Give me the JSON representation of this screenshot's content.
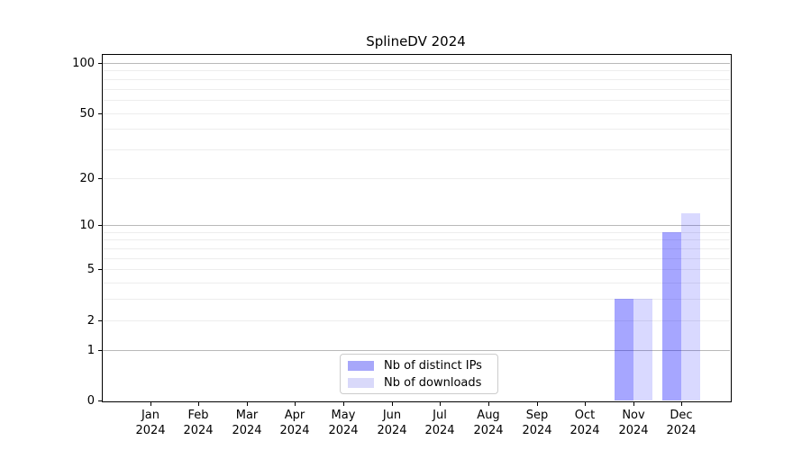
{
  "chart_data": {
    "type": "bar",
    "title": "SplineDV 2024",
    "categories": [
      "Jan 2024",
      "Feb 2024",
      "Mar 2024",
      "Apr 2024",
      "May 2024",
      "Jun 2024",
      "Jul 2024",
      "Aug 2024",
      "Sep 2024",
      "Oct 2024",
      "Nov 2024",
      "Dec 2024"
    ],
    "series": [
      {
        "name": "Nb of distinct IPs",
        "color": "#a7a7fa",
        "fill_rgba": "rgba(0,0,255,0.35)",
        "values": [
          0,
          0,
          0,
          0,
          0,
          0,
          0,
          0,
          0,
          0,
          3,
          9
        ]
      },
      {
        "name": "Nb of downloads",
        "color": "#d9d9fa",
        "fill_rgba": "rgba(0,0,255,0.15)",
        "values": [
          0,
          0,
          0,
          0,
          0,
          0,
          0,
          0,
          0,
          0,
          3,
          12
        ]
      }
    ],
    "xlabel": "",
    "ylabel": "",
    "y_scale": "log1p",
    "y_ticks": [
      0,
      1,
      2,
      5,
      10,
      20,
      50,
      100
    ],
    "ylim": [
      0,
      113
    ],
    "grid": true,
    "y_gridlines_major": [
      1,
      10,
      100
    ],
    "y_gridlines_minor": [
      2,
      3,
      4,
      5,
      6,
      7,
      8,
      9,
      20,
      30,
      40,
      50,
      60,
      70,
      80,
      90
    ],
    "legend_position": "lower center",
    "colors": {
      "gridline_major": "#b9b9b9",
      "gridline_minor": "#ededed",
      "axis": "#000000",
      "legend_border": "#cccccc",
      "background": "#ffffff"
    }
  }
}
